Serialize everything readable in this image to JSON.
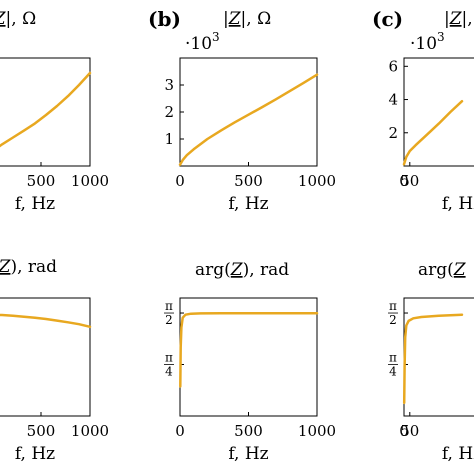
{
  "figure": {
    "series_color": "#E8A820"
  },
  "chart_data": [
    {
      "id": "a-top",
      "type": "line",
      "title": "|Z|, Ω",
      "title_math": {
        "underlined": "Z",
        "suffix": ", Ω"
      },
      "xlabel": "f, Hz",
      "xticks": [
        "500",
        "1000"
      ],
      "xlim": [
        0,
        1000
      ],
      "ylim": [
        0,
        3.6
      ],
      "x": [
        0,
        100,
        200,
        300,
        400,
        500,
        600,
        700,
        800,
        900,
        1000
      ],
      "values": [
        0.0,
        0.45,
        0.72,
        0.95,
        1.18,
        1.42,
        1.7,
        2.0,
        2.33,
        2.7,
        3.1
      ]
    },
    {
      "id": "b-top",
      "type": "line",
      "panel": "(b)",
      "title": "|Z|, Ω",
      "title_math": {
        "underlined": "Z",
        "suffix": ", Ω"
      },
      "scale_label": "·10",
      "scale_exp": "3",
      "xlabel": "f, Hz",
      "xticks": [
        "0",
        "500",
        "1000"
      ],
      "yticks": [
        "1",
        "2",
        "3"
      ],
      "xlim": [
        0,
        1000
      ],
      "ylim": [
        0,
        4
      ],
      "x": [
        0,
        20,
        50,
        100,
        200,
        300,
        400,
        500,
        600,
        700,
        800,
        900,
        1000
      ],
      "values": [
        0.05,
        0.22,
        0.4,
        0.62,
        1.0,
        1.32,
        1.62,
        1.9,
        2.18,
        2.47,
        2.77,
        3.07,
        3.38
      ]
    },
    {
      "id": "c-top",
      "type": "line",
      "panel": "(c)",
      "title": "|Z|, Ω",
      "title_math": {
        "underlined": "Z",
        "suffix": ", Ω"
      },
      "scale_label": "·10",
      "scale_exp": "3",
      "xlabel": "f, Hz",
      "xticks": [
        "0",
        "50"
      ],
      "yticks": [
        "2",
        "4",
        "6"
      ],
      "xlim": [
        0,
        1000
      ],
      "ylim": [
        0,
        6.5
      ],
      "x": [
        0,
        20,
        50,
        100,
        200,
        300,
        400,
        500
      ],
      "values": [
        0.1,
        0.55,
        0.9,
        1.25,
        1.9,
        2.55,
        3.25,
        3.9
      ]
    },
    {
      "id": "a-bottom",
      "type": "line",
      "title": "arg(Z), rad",
      "title_math": {
        "prefix": "(",
        "underlined": "Z",
        "suffix": "), rad"
      },
      "xlabel": "f, Hz",
      "xticks": [
        "500",
        "1000"
      ],
      "xlim": [
        0,
        1000
      ],
      "ylim": [
        0,
        1.8
      ],
      "x": [
        0,
        100,
        200,
        300,
        400,
        500,
        600,
        700,
        800,
        900,
        1000
      ],
      "values": [
        1.55,
        1.545,
        1.54,
        1.53,
        1.515,
        1.5,
        1.48,
        1.455,
        1.43,
        1.4,
        1.36
      ]
    },
    {
      "id": "b-bottom",
      "type": "line",
      "title": "arg(Z), rad",
      "title_math": {
        "prefix": "arg(",
        "underlined": "Z",
        "suffix": "), rad"
      },
      "xlabel": "f, Hz",
      "xticks": [
        "0",
        "500",
        "1000"
      ],
      "yticks": [
        {
          "num": "π",
          "den": "4",
          "value": 0.7854
        },
        {
          "num": "π",
          "den": "2",
          "value": 1.5708
        }
      ],
      "xlim": [
        0,
        1000
      ],
      "ylim": [
        0,
        1.8
      ],
      "x": [
        2,
        5,
        10,
        20,
        40,
        80,
        150,
        300,
        500,
        700,
        900,
        1000
      ],
      "values": [
        0.45,
        1.05,
        1.35,
        1.5,
        1.545,
        1.56,
        1.565,
        1.567,
        1.568,
        1.568,
        1.567,
        1.566
      ]
    },
    {
      "id": "c-bottom",
      "type": "line",
      "title": "arg(Z), rad",
      "title_math": {
        "prefix": "arg(",
        "underlined": "Z",
        "suffix": ""
      },
      "xlabel": "f, Hz",
      "xticks": [
        "0",
        "50"
      ],
      "yticks": [
        {
          "num": "π",
          "den": "4",
          "value": 0.7854
        },
        {
          "num": "π",
          "den": "2",
          "value": 1.5708
        }
      ],
      "xlim": [
        0,
        1000
      ],
      "ylim": [
        0,
        1.8
      ],
      "x": [
        2,
        5,
        10,
        20,
        40,
        80,
        150,
        300,
        500
      ],
      "values": [
        0.2,
        0.75,
        1.2,
        1.38,
        1.45,
        1.49,
        1.51,
        1.53,
        1.545
      ]
    }
  ]
}
